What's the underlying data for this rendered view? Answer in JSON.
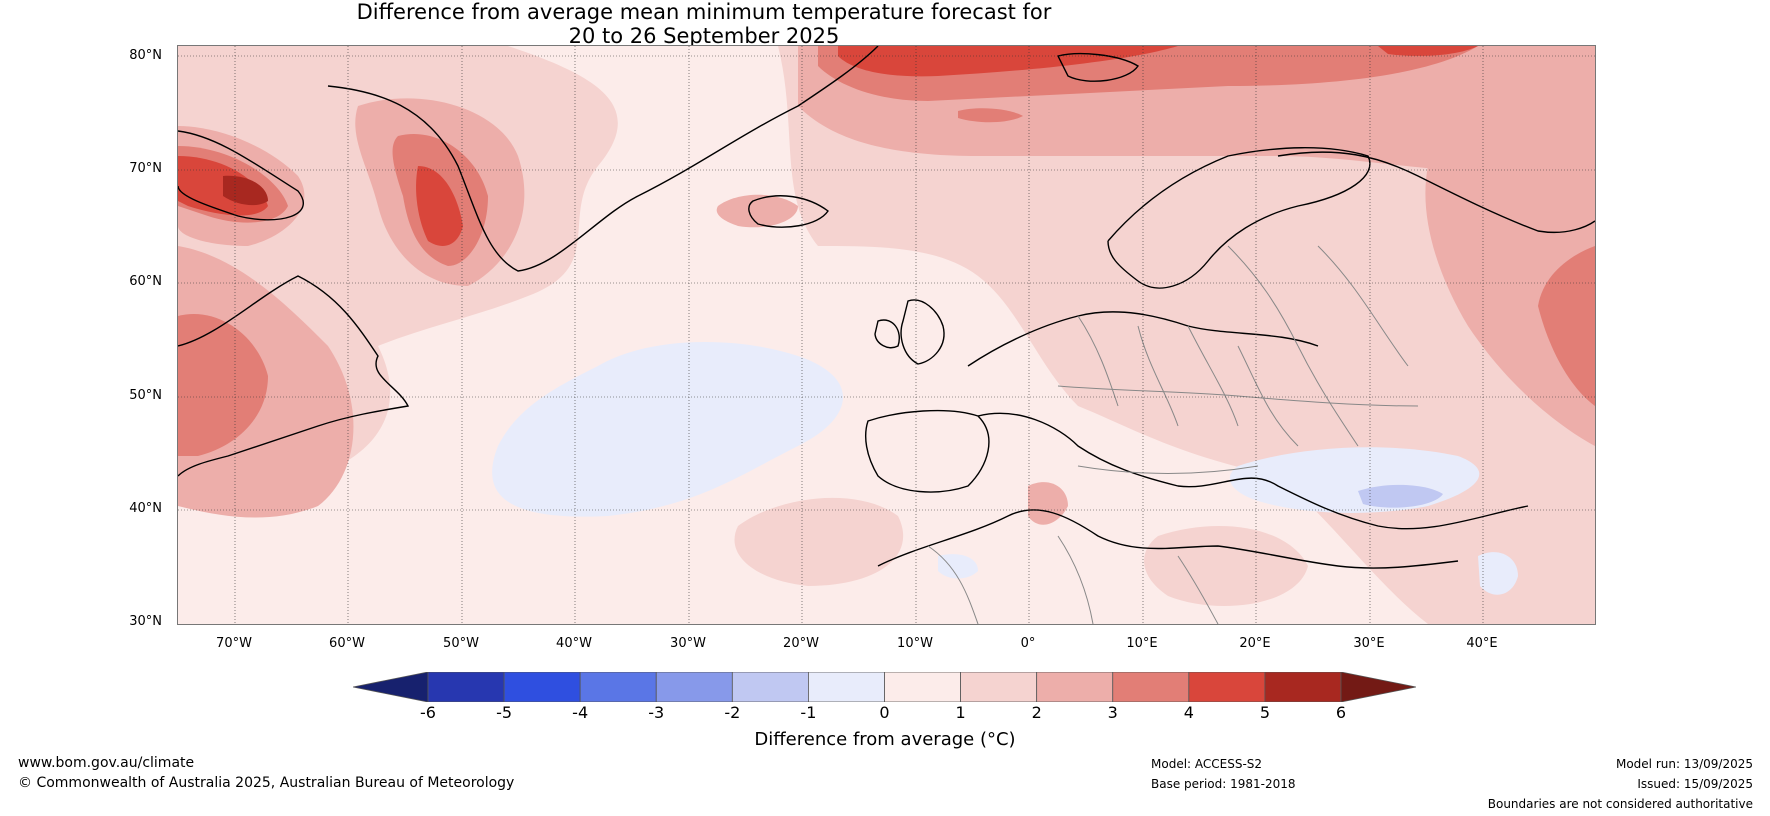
{
  "title": {
    "line1": "Difference from average mean minimum temperature forecast for",
    "line2": "20 to 26 September 2025"
  },
  "map": {
    "lat_labels": [
      "80°N",
      "70°N",
      "60°N",
      "50°N",
      "40°N",
      "30°N"
    ],
    "lon_labels": [
      "70°W",
      "60°W",
      "50°W",
      "40°W",
      "30°W",
      "20°W",
      "10°W",
      "0°",
      "10°E",
      "20°E",
      "30°E",
      "40°E"
    ],
    "gridlines": true
  },
  "colorbar": {
    "ticks": [
      "-6",
      "-5",
      "-4",
      "-3",
      "-2",
      "-1",
      "0",
      "1",
      "2",
      "3",
      "4",
      "5",
      "6"
    ],
    "label": "Difference from average (°C)",
    "colors": {
      "below_min": "#17216e",
      "-6_-5": "#2737b0",
      "-5_-4": "#2f4fe0",
      "-4_-3": "#5a76e6",
      "-3_-2": "#8799ea",
      "-2_-1": "#c0c8f2",
      "-1_0": "#e8ecfb",
      "0_1": "#fcecea",
      "1_2": "#f5d3d0",
      "2_3": "#edaeaa",
      "3_4": "#e27e76",
      "4_5": "#d9463b",
      "5_6": "#a82820",
      "above_max": "#731a15"
    }
  },
  "footer": {
    "website": "www.bom.gov.au/climate",
    "copyright": "© Commonwealth of Australia 2025, Australian Bureau of Meteorology",
    "model": "Model: ACCESS-S2",
    "base_period": "Base period: 1981-2018",
    "model_run": "Model run: 13/09/2025",
    "issued": "Issued: 15/09/2025",
    "disclaimer": "Boundaries are not considered authoritative"
  }
}
